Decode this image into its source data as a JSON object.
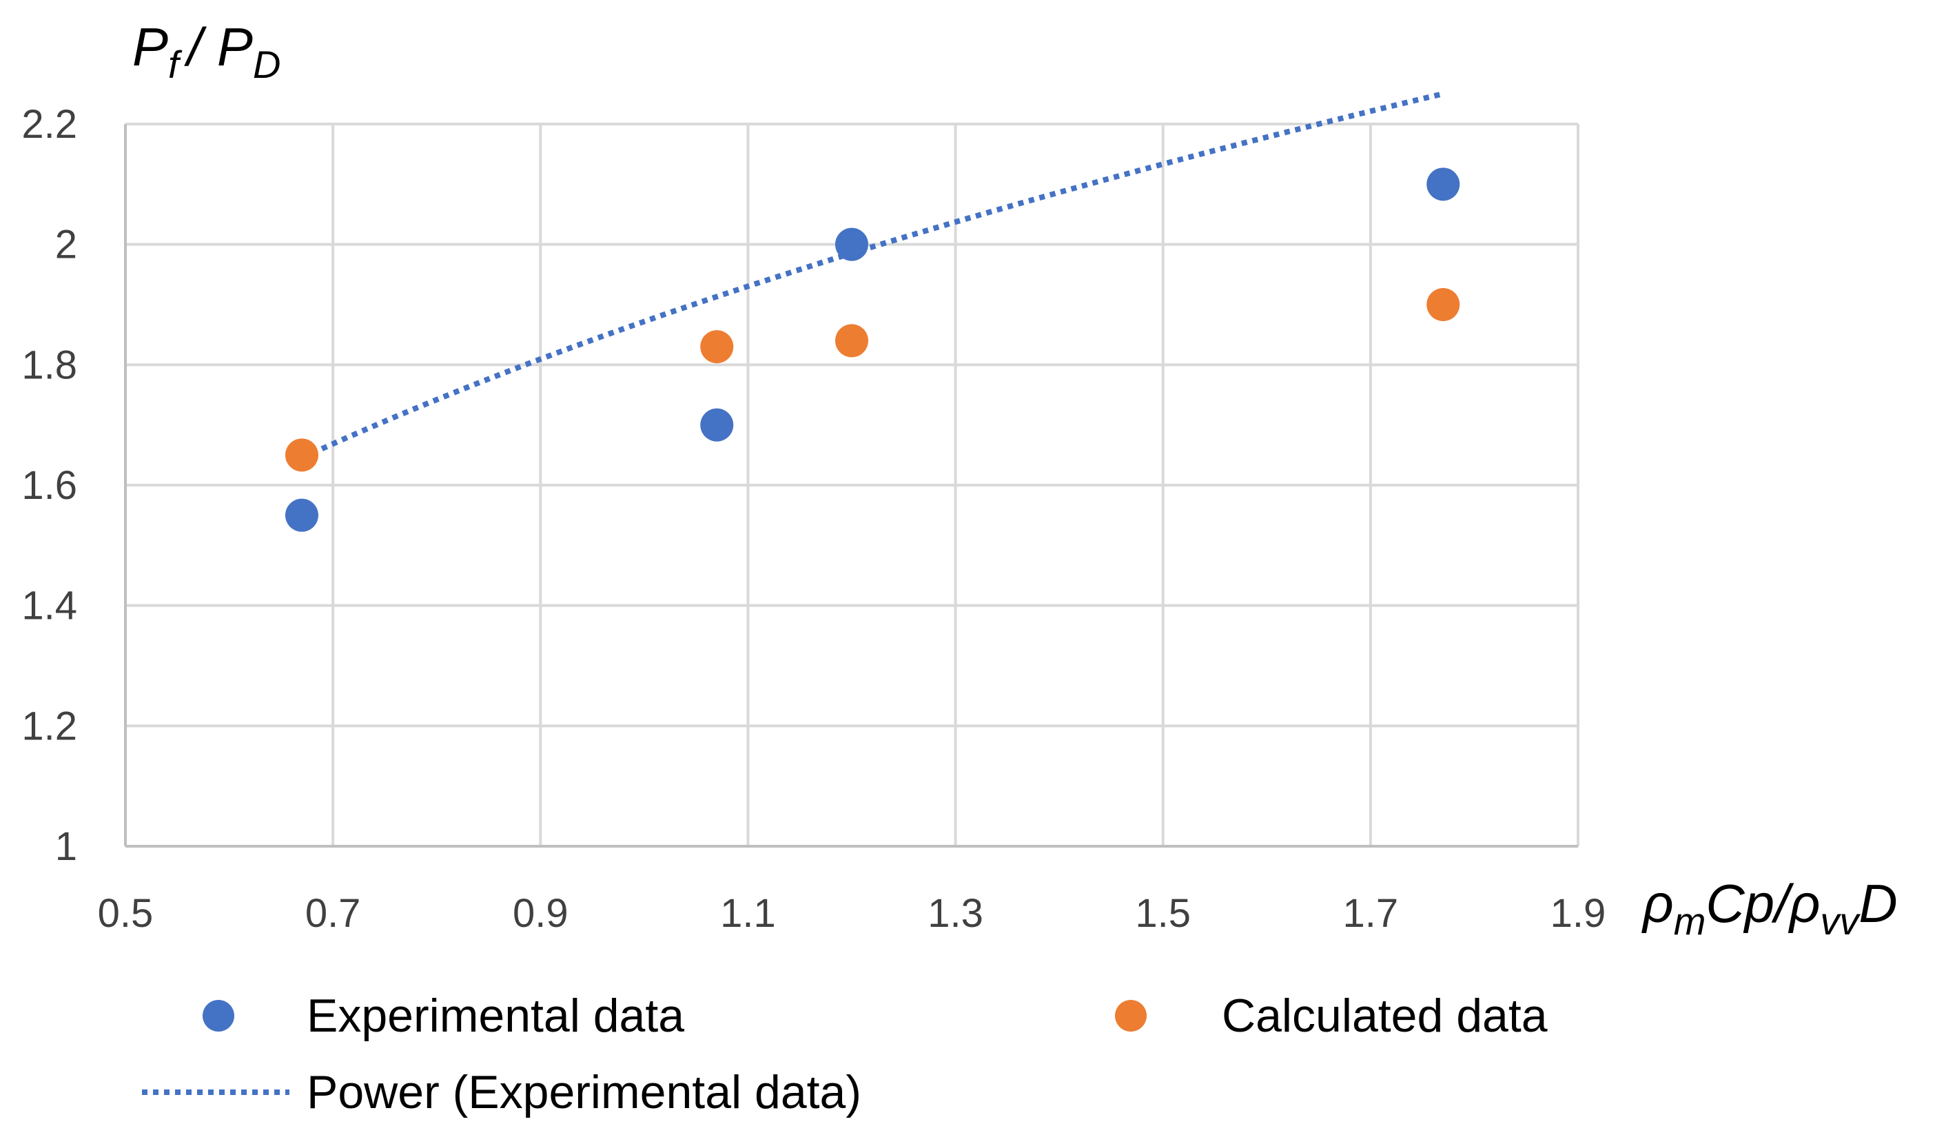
{
  "chart_data": {
    "type": "scatter",
    "xlim": [
      0.5,
      1.9
    ],
    "ylim": [
      1,
      2.2
    ],
    "x_ticks": [
      "0.5",
      "0.7",
      "0.9",
      "1.1",
      "1.3",
      "1.5",
      "1.7",
      "1.9"
    ],
    "y_ticks": [
      "1",
      "1.2",
      "1.4",
      "1.6",
      "1.8",
      "2",
      "2.2"
    ],
    "grid": true,
    "ylabel": {
      "main": "P",
      "sub1": "f",
      "mid": "/ P",
      "sub2": "D"
    },
    "xlabel": {
      "p1": "ρ",
      "s1": "m",
      "p2": "Cp/ρ",
      "s2": "vv",
      "p3": "D"
    },
    "series": [
      {
        "name": "Experimental data",
        "color": "#4472C4",
        "points": [
          {
            "x": 0.67,
            "y": 1.55
          },
          {
            "x": 1.07,
            "y": 1.7
          },
          {
            "x": 1.2,
            "y": 2.0
          },
          {
            "x": 1.77,
            "y": 2.1
          }
        ]
      },
      {
        "name": "Calculated data",
        "color": "#ED7D31",
        "points": [
          {
            "x": 0.67,
            "y": 1.65
          },
          {
            "x": 1.07,
            "y": 1.83
          },
          {
            "x": 1.2,
            "y": 1.84
          },
          {
            "x": 1.77,
            "y": 1.9
          }
        ]
      }
    ],
    "trendline": {
      "name": "Power (Experimental data)",
      "type": "power",
      "of": "Experimental data",
      "color": "#4472C4",
      "a": 1.872,
      "b": 0.3224,
      "x_range": [
        0.67,
        1.77
      ]
    },
    "legend": {
      "position": "bottom",
      "items": [
        "Experimental data",
        "Calculated data",
        "Power (Experimental data)"
      ]
    }
  }
}
